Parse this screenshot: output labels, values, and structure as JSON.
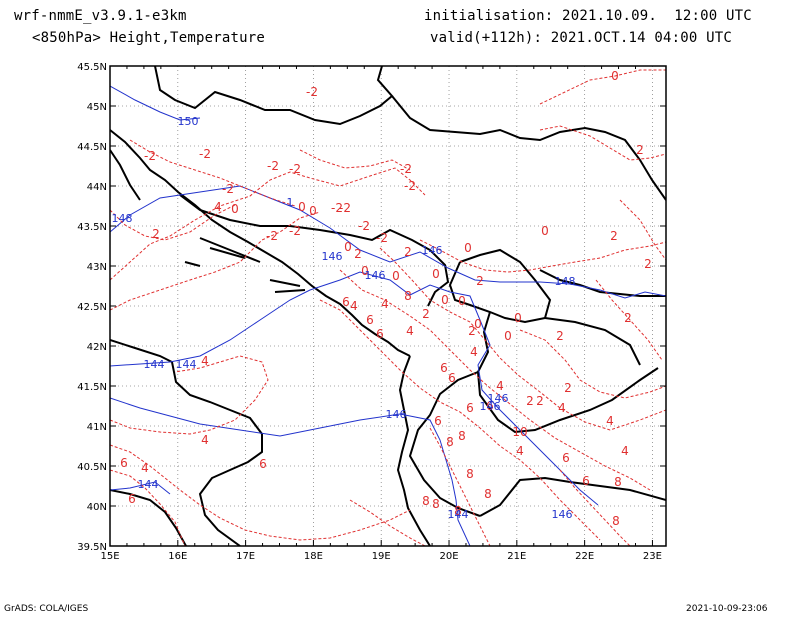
{
  "header": {
    "model": "wrf-nmmE_v3.9.1-e3km",
    "level": "<850hPa> Height,Temperature",
    "init": "initialisation: 2021.10.09.  12:00 UTC",
    "valid": "valid(+112h): 2021.OCT.14 04:00 UTC"
  },
  "axes": {
    "lon_labels": [
      "15E",
      "16E",
      "17E",
      "18E",
      "19E",
      "20E",
      "21E",
      "22E",
      "23E"
    ],
    "lat_labels": [
      "45.5N",
      "45N",
      "44.5N",
      "44N",
      "43.5N",
      "43N",
      "42.5N",
      "42N",
      "41.5N",
      "41N",
      "40.5N",
      "40N",
      "39.5N"
    ],
    "lon_range": [
      15,
      23.2
    ],
    "lat_range": [
      39.5,
      45.5
    ],
    "grid": "dotted"
  },
  "colors": {
    "temperature": "#e03030",
    "height": "#2233cc",
    "coast": "#000000"
  },
  "contours": {
    "height_labels": [
      "150",
      "148",
      "146",
      "146",
      "146",
      "148",
      "146",
      "144",
      "146",
      "144",
      "146",
      "144",
      "144",
      "146",
      "1"
    ],
    "temp_labels": [
      "-2",
      "-2",
      "-2",
      "-2",
      "-2",
      "-2",
      "-2",
      "-2",
      "-2",
      "-2",
      "-2",
      "-2",
      "-2",
      "-2",
      "0",
      "0",
      "0",
      "0",
      "0",
      "0",
      "0",
      "0",
      "0",
      "0",
      "0",
      "0",
      "0",
      "0",
      "0",
      "2",
      "2",
      "2",
      "2",
      "2",
      "2",
      "2",
      "2",
      "2",
      "2",
      "2",
      "2",
      "2",
      "2",
      "4",
      "4",
      "4",
      "4",
      "4",
      "4",
      "4",
      "4",
      "4",
      "4",
      "4",
      "4",
      "4",
      "6",
      "6",
      "6",
      "6",
      "6",
      "6",
      "6",
      "6",
      "6",
      "6",
      "6",
      "6",
      "6",
      "8",
      "8",
      "8",
      "8",
      "8",
      "8",
      "8",
      "8",
      "8",
      "8",
      "10"
    ]
  },
  "footer": {
    "left": "GrADS: COLA/IGES",
    "right": "2021-10-09-23:06"
  }
}
